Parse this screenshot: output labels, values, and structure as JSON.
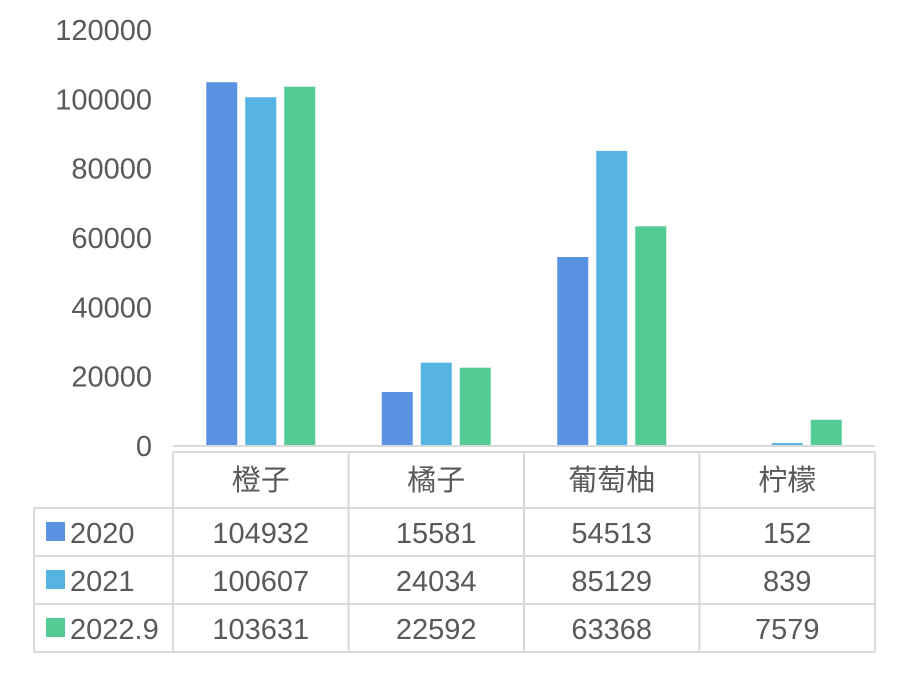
{
  "chart_data": {
    "type": "bar",
    "categories": [
      "橙子",
      "橘子",
      "葡萄柚",
      "柠檬"
    ],
    "series": [
      {
        "name": "2020",
        "values": [
          104932,
          15581,
          54513,
          152
        ],
        "color": "#5B93E3"
      },
      {
        "name": "2021",
        "values": [
          100607,
          24034,
          85129,
          839
        ],
        "color": "#56B4E3"
      },
      {
        "name": "2022.9",
        "values": [
          103631,
          22592,
          63368,
          7579
        ],
        "color": "#53CB94"
      }
    ],
    "yticks": [
      "0",
      "20000",
      "40000",
      "60000",
      "80000",
      "100000",
      "120000"
    ],
    "ylim": [
      0,
      120000
    ],
    "grid": false,
    "legend": "data-table-left",
    "table": {
      "header": [
        "橙子",
        "橘子",
        "葡萄柚",
        "柠檬"
      ],
      "rows": [
        {
          "label": "2020",
          "cells": [
            "104932",
            "15581",
            "54513",
            "152"
          ]
        },
        {
          "label": "2021",
          "cells": [
            "100607",
            "24034",
            "85129",
            "839"
          ]
        },
        {
          "label": "2022.9",
          "cells": [
            "103631",
            "22592",
            "63368",
            "7579"
          ]
        }
      ]
    },
    "colors": {
      "axis": "#D9D9D9",
      "text": "#595959"
    }
  }
}
